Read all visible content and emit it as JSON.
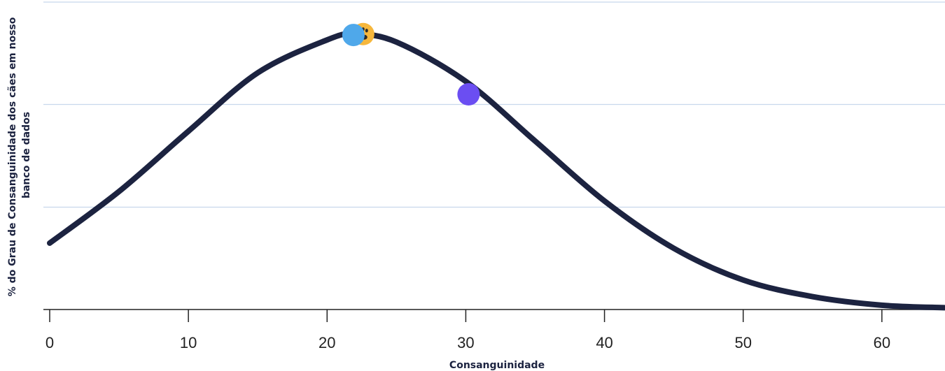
{
  "chart_data": {
    "type": "line",
    "xlabel": "Consanguinidade",
    "ylabel": "% do Grau de Consanguinidade dos cães em nosso banco de dados",
    "xlim": [
      0,
      64.5
    ],
    "ylim": [
      0,
      100
    ],
    "x_ticks": [
      0,
      10,
      20,
      30,
      40,
      50,
      60
    ],
    "y_gridlines": [
      0,
      33.3,
      66.7,
      100
    ],
    "grid": true,
    "curve": {
      "x": [
        0,
        5,
        10,
        15,
        20,
        22,
        25,
        30,
        35,
        40,
        45,
        50,
        55,
        60,
        64.5
      ],
      "y": [
        21.6,
        38.4,
        58.0,
        77.0,
        87.7,
        89.6,
        87.0,
        74.2,
        54.8,
        35.3,
        19.9,
        9.6,
        4.2,
        1.4,
        0.6
      ]
    },
    "markers": [
      {
        "x": 22.6,
        "y": 89.6,
        "color": "#f6b73c",
        "icon": "paw-icon"
      },
      {
        "x": 21.9,
        "y": 89.3,
        "color": "#4fa8ea"
      },
      {
        "x": 30.2,
        "y": 70.0,
        "color": "#6b4ef2"
      }
    ],
    "colors": {
      "line": "#1c2340",
      "grid": "#c8d8ec",
      "axis": "#222222"
    }
  }
}
